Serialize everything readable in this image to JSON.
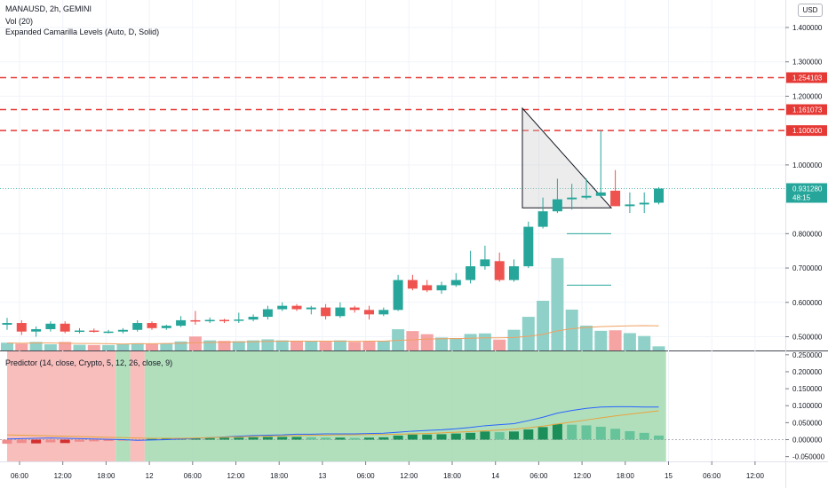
{
  "header": {
    "symbol_line": "MANAUSD, 2h, GEMINI",
    "volume_label": "Vol (20)",
    "camarilla_label": "Expanded Camarilla Levels (Auto, D, Solid)",
    "currency": "USD"
  },
  "predictor": {
    "label": "Predictor (14, close, Crypto, 5, 12, 26, close, 9)"
  },
  "colors": {
    "up": "#26a69a",
    "down": "#ef5350",
    "up_volume": "#8fd1c9",
    "down_volume": "#f5a3a3",
    "level_line": "#e53935",
    "ma_line": "#f0a060",
    "price_line": "#26a69a",
    "bg_red": "#f6b7b5",
    "bg_green": "#a8dcb5",
    "signal_blue": "#2962ff",
    "signal_orange": "#e8a33d"
  },
  "chart_data": [
    {
      "type": "candlestick",
      "price_axis": {
        "ticks": [
          "1.400000",
          "1.300000",
          "1.200000",
          "1.000000",
          "0.800000",
          "0.700000",
          "0.600000",
          "0.500000"
        ],
        "range": [
          0.46,
          1.48
        ]
      },
      "levels": [
        {
          "value": 1.254103,
          "label": "1.254103"
        },
        {
          "value": 1.161073,
          "label": "1.161073"
        },
        {
          "value": 1.1,
          "label": "1.100000"
        }
      ],
      "current_price": {
        "value": 0.93128,
        "label": "0.931280",
        "countdown": "48:15"
      },
      "time_ticks": [
        "06:00",
        "12:00",
        "18:00",
        "12",
        "06:00",
        "12:00",
        "18:00",
        "13",
        "06:00",
        "12:00",
        "18:00",
        "14",
        "06:00",
        "12:00",
        "18:00",
        "15",
        "06:00",
        "12:00"
      ],
      "candles": [
        {
          "o": 0.535,
          "h": 0.555,
          "l": 0.52,
          "c": 0.54
        },
        {
          "o": 0.54,
          "h": 0.548,
          "l": 0.505,
          "c": 0.515
        },
        {
          "o": 0.515,
          "h": 0.53,
          "l": 0.5,
          "c": 0.522
        },
        {
          "o": 0.522,
          "h": 0.545,
          "l": 0.515,
          "c": 0.538
        },
        {
          "o": 0.538,
          "h": 0.545,
          "l": 0.51,
          "c": 0.515
        },
        {
          "o": 0.515,
          "h": 0.525,
          "l": 0.51,
          "c": 0.518
        },
        {
          "o": 0.518,
          "h": 0.524,
          "l": 0.512,
          "c": 0.515
        },
        {
          "o": 0.515,
          "h": 0.52,
          "l": 0.51,
          "c": 0.515
        },
        {
          "o": 0.515,
          "h": 0.525,
          "l": 0.51,
          "c": 0.52
        },
        {
          "o": 0.52,
          "h": 0.548,
          "l": 0.515,
          "c": 0.54
        },
        {
          "o": 0.54,
          "h": 0.545,
          "l": 0.52,
          "c": 0.525
        },
        {
          "o": 0.525,
          "h": 0.535,
          "l": 0.52,
          "c": 0.532
        },
        {
          "o": 0.532,
          "h": 0.56,
          "l": 0.528,
          "c": 0.548
        },
        {
          "o": 0.548,
          "h": 0.575,
          "l": 0.535,
          "c": 0.545
        },
        {
          "o": 0.545,
          "h": 0.556,
          "l": 0.54,
          "c": 0.549
        },
        {
          "o": 0.549,
          "h": 0.552,
          "l": 0.54,
          "c": 0.548
        },
        {
          "o": 0.548,
          "h": 0.57,
          "l": 0.54,
          "c": 0.55
        },
        {
          "o": 0.55,
          "h": 0.565,
          "l": 0.545,
          "c": 0.558
        },
        {
          "o": 0.558,
          "h": 0.59,
          "l": 0.55,
          "c": 0.58
        },
        {
          "o": 0.58,
          "h": 0.6,
          "l": 0.575,
          "c": 0.59
        },
        {
          "o": 0.59,
          "h": 0.595,
          "l": 0.575,
          "c": 0.58
        },
        {
          "o": 0.58,
          "h": 0.59,
          "l": 0.565,
          "c": 0.585
        },
        {
          "o": 0.585,
          "h": 0.595,
          "l": 0.55,
          "c": 0.56
        },
        {
          "o": 0.56,
          "h": 0.6,
          "l": 0.555,
          "c": 0.585
        },
        {
          "o": 0.585,
          "h": 0.59,
          "l": 0.57,
          "c": 0.578
        },
        {
          "o": 0.578,
          "h": 0.59,
          "l": 0.55,
          "c": 0.565
        },
        {
          "o": 0.565,
          "h": 0.585,
          "l": 0.56,
          "c": 0.578
        },
        {
          "o": 0.578,
          "h": 0.68,
          "l": 0.575,
          "c": 0.665
        },
        {
          "o": 0.665,
          "h": 0.68,
          "l": 0.635,
          "c": 0.64
        },
        {
          "o": 0.65,
          "h": 0.665,
          "l": 0.63,
          "c": 0.635
        },
        {
          "o": 0.635,
          "h": 0.66,
          "l": 0.625,
          "c": 0.65
        },
        {
          "o": 0.65,
          "h": 0.685,
          "l": 0.645,
          "c": 0.665
        },
        {
          "o": 0.665,
          "h": 0.75,
          "l": 0.655,
          "c": 0.705
        },
        {
          "o": 0.705,
          "h": 0.765,
          "l": 0.695,
          "c": 0.725
        },
        {
          "o": 0.72,
          "h": 0.745,
          "l": 0.66,
          "c": 0.665
        },
        {
          "o": 0.665,
          "h": 0.725,
          "l": 0.66,
          "c": 0.705
        },
        {
          "o": 0.705,
          "h": 0.835,
          "l": 0.7,
          "c": 0.82
        },
        {
          "o": 0.82,
          "h": 0.905,
          "l": 0.815,
          "c": 0.865
        },
        {
          "o": 0.865,
          "h": 0.96,
          "l": 0.86,
          "c": 0.9
        },
        {
          "o": 0.9,
          "h": 0.945,
          "l": 0.87,
          "c": 0.905
        },
        {
          "o": 0.905,
          "h": 0.96,
          "l": 0.9,
          "c": 0.91
        },
        {
          "o": 0.91,
          "h": 1.1,
          "l": 0.905,
          "c": 0.92
        },
        {
          "o": 0.925,
          "h": 0.985,
          "l": 0.88,
          "c": 0.88
        },
        {
          "o": 0.88,
          "h": 0.92,
          "l": 0.86,
          "c": 0.885
        },
        {
          "o": 0.885,
          "h": 0.92,
          "l": 0.86,
          "c": 0.89
        },
        {
          "o": 0.89,
          "h": 0.935,
          "l": 0.885,
          "c": 0.93128
        }
      ],
      "volumes": [
        3,
        2.6,
        3.3,
        2.4,
        3.3,
        2.2,
        2.1,
        2.1,
        2.4,
        2.8,
        2.5,
        2.6,
        3.5,
        5.4,
        3.9,
        3.7,
        3.6,
        3.9,
        4.3,
        3.9,
        3.8,
        3.5,
        3.4,
        3.9,
        3.3,
        3.6,
        3.6,
        8.2,
        7.5,
        6.3,
        5,
        4.8,
        6.4,
        6.6,
        4.2,
        8,
        13,
        19.2,
        35.7,
        15.8,
        9.6,
        7.6,
        7.8,
        6.7,
        5.6,
        1.6
      ],
      "volume_ma": [
        2.9,
        2.8,
        2.9,
        2.9,
        2.8,
        2.7,
        2.7,
        2.6,
        2.5,
        2.6,
        2.6,
        2.7,
        2.8,
        3,
        3.1,
        3.2,
        3.3,
        3.4,
        3.5,
        3.6,
        3.6,
        3.6,
        3.6,
        3.6,
        3.5,
        3.6,
        3.6,
        3.9,
        4.1,
        4.4,
        4.5,
        4.6,
        4.7,
        4.9,
        4.9,
        5,
        5.5,
        6.2,
        7.6,
        8.4,
        8.9,
        9.2,
        9.4,
        9.5,
        9.6,
        9.5
      ]
    },
    {
      "type": "area",
      "axis": {
        "ticks": [
          "0.250000",
          "0.200000",
          "0.150000",
          "0.100000",
          "0.050000",
          "0.000000",
          "-0.050000"
        ],
        "range": [
          -0.064,
          0.26
        ]
      },
      "background_regions": [
        {
          "from": 0,
          "to": 7.5,
          "signal": "red"
        },
        {
          "from": 7.5,
          "to": 8.5,
          "signal": "green"
        },
        {
          "from": 8.5,
          "to": 9.5,
          "signal": "red"
        },
        {
          "from": 9.5,
          "to": 45.5,
          "signal": "green"
        }
      ],
      "histogram": [
        -0.012,
        -0.01,
        -0.011,
        -0.008,
        -0.01,
        -0.006,
        -0.005,
        -0.004,
        -0.003,
        -0.001,
        0.002,
        0.003,
        0.004,
        0.005,
        0.005,
        0.006,
        0.006,
        0.007,
        0.008,
        0.008,
        0.008,
        0.007,
        0.006,
        0.006,
        0.005,
        0.006,
        0.007,
        0.012,
        0.015,
        0.015,
        0.016,
        0.018,
        0.02,
        0.024,
        0.022,
        0.024,
        0.03,
        0.037,
        0.046,
        0.044,
        0.042,
        0.038,
        0.032,
        0.025,
        0.02,
        0.012
      ],
      "signal_fast": [
        0.002,
        0.003,
        0.004,
        0.005,
        0.004,
        0.003,
        0.002,
        0.001,
        0,
        -0.002,
        -0.001,
        0,
        0.002,
        0.004,
        0.006,
        0.008,
        0.01,
        0.012,
        0.013,
        0.014,
        0.016,
        0.016,
        0.017,
        0.017,
        0.017,
        0.018,
        0.019,
        0.022,
        0.025,
        0.027,
        0.029,
        0.032,
        0.036,
        0.041,
        0.044,
        0.047,
        0.056,
        0.066,
        0.078,
        0.086,
        0.092,
        0.096,
        0.097,
        0.097,
        0.096,
        0.096
      ],
      "signal_slow": [
        0.014,
        0.013,
        0.012,
        0.011,
        0.01,
        0.009,
        0.008,
        0.007,
        0.006,
        0.005,
        0.004,
        0.004,
        0.004,
        0.005,
        0.006,
        0.007,
        0.008,
        0.009,
        0.01,
        0.011,
        0.012,
        0.013,
        0.013,
        0.014,
        0.014,
        0.015,
        0.015,
        0.016,
        0.017,
        0.018,
        0.02,
        0.022,
        0.024,
        0.026,
        0.028,
        0.031,
        0.035,
        0.04,
        0.046,
        0.052,
        0.058,
        0.064,
        0.07,
        0.075,
        0.08,
        0.085
      ]
    }
  ]
}
